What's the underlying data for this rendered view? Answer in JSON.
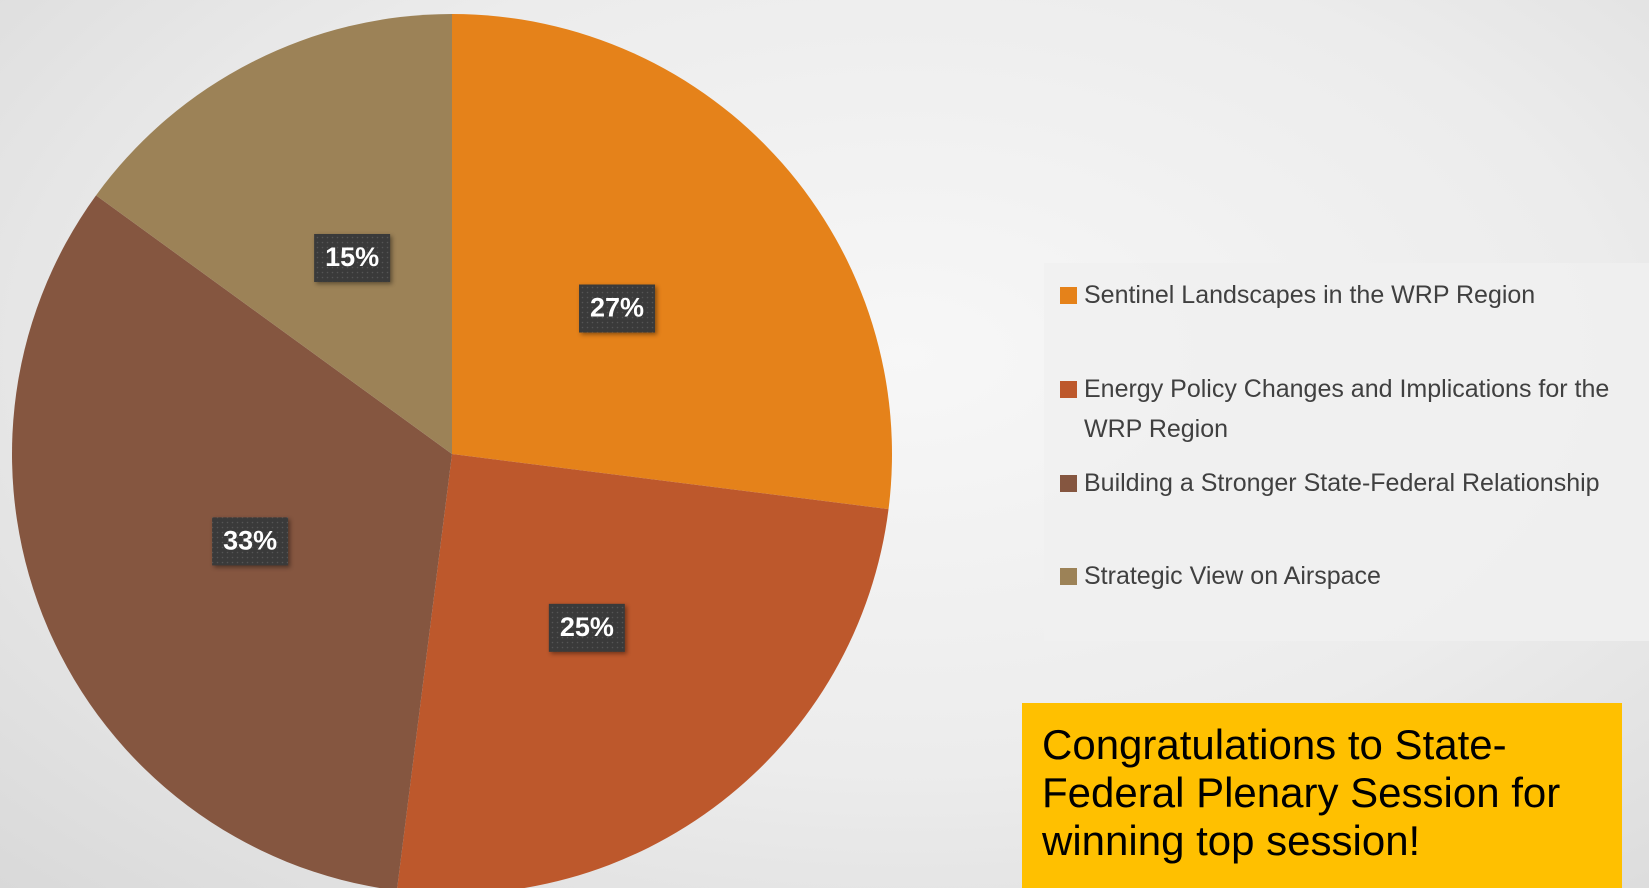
{
  "chart_data": {
    "type": "pie",
    "categories": [
      "Sentinel Landscapes in the WRP Region",
      "Energy Policy Changes and Implications for the WRP Region",
      "Building a Stronger State-Federal Relationship",
      "Strategic View on Airspace"
    ],
    "values": [
      27,
      25,
      33,
      15
    ],
    "value_labels": [
      "27%",
      "25%",
      "33%",
      "15%"
    ],
    "colors": [
      "#E5821A",
      "#BD582C",
      "#855640",
      "#9C8257"
    ],
    "legend": "right",
    "annotation": "Congratulations to State-Federal Plenary Session for winning top session!"
  }
}
